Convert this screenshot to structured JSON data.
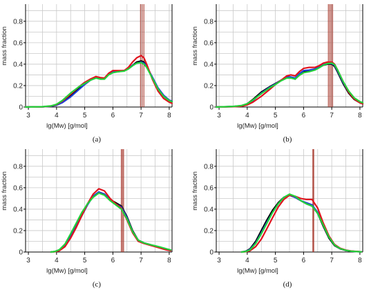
{
  "chart_data": [
    {
      "type": "line",
      "panel_label": "(a)",
      "xlabel": "lg(Mw)  [g/mol]",
      "ylabel": "mass fraction",
      "xlim": [
        2.9,
        8.1
      ],
      "ylim": [
        0,
        0.96
      ],
      "xticks": [
        "3",
        "4",
        "5",
        "6",
        "7",
        "8"
      ],
      "yticks": [
        "0",
        "0.2",
        "0.4",
        "0.6",
        "0.8"
      ],
      "grid": true,
      "colors": {
        "black": "#000000",
        "blue": "#1f3fd6",
        "red": "#e0141e",
        "green": "#22d23a",
        "vline": "#a83a2e"
      },
      "vlines": [
        6.98,
        7.04,
        7.1
      ],
      "series": [
        {
          "color": "black",
          "x": [
            2.9,
            3.5,
            3.8,
            4.0,
            4.2,
            4.5,
            4.8,
            5.0,
            5.2,
            5.4,
            5.55,
            5.7,
            5.85,
            6.0,
            6.2,
            6.4,
            6.55,
            6.7,
            6.85,
            7.0,
            7.1,
            7.2,
            7.4,
            7.6,
            7.8,
            8.0,
            8.1
          ],
          "y": [
            0,
            0.002,
            0.008,
            0.02,
            0.05,
            0.11,
            0.18,
            0.22,
            0.26,
            0.28,
            0.27,
            0.27,
            0.31,
            0.33,
            0.33,
            0.34,
            0.36,
            0.39,
            0.42,
            0.43,
            0.42,
            0.38,
            0.27,
            0.17,
            0.1,
            0.06,
            0.05
          ]
        },
        {
          "color": "blue",
          "x": [
            2.9,
            3.5,
            3.8,
            4.0,
            4.2,
            4.5,
            4.8,
            5.0,
            5.2,
            5.4,
            5.55,
            5.7,
            5.85,
            6.0,
            6.2,
            6.4,
            6.55,
            6.7,
            6.85,
            7.0,
            7.1,
            7.2,
            7.4,
            7.6,
            7.8,
            8.0,
            8.1
          ],
          "y": [
            0,
            0.002,
            0.007,
            0.017,
            0.04,
            0.095,
            0.165,
            0.21,
            0.25,
            0.28,
            0.27,
            0.265,
            0.305,
            0.33,
            0.335,
            0.34,
            0.36,
            0.39,
            0.41,
            0.42,
            0.41,
            0.38,
            0.28,
            0.18,
            0.11,
            0.065,
            0.055
          ]
        },
        {
          "color": "red",
          "x": [
            2.9,
            3.5,
            3.8,
            4.0,
            4.2,
            4.5,
            4.8,
            5.0,
            5.2,
            5.4,
            5.55,
            5.7,
            5.85,
            6.0,
            6.2,
            6.4,
            6.55,
            6.7,
            6.85,
            7.0,
            7.1,
            7.2,
            7.4,
            7.6,
            7.8,
            8.0,
            8.1
          ],
          "y": [
            0,
            0.002,
            0.009,
            0.022,
            0.055,
            0.12,
            0.19,
            0.23,
            0.26,
            0.285,
            0.275,
            0.27,
            0.315,
            0.34,
            0.34,
            0.34,
            0.37,
            0.42,
            0.46,
            0.48,
            0.46,
            0.4,
            0.26,
            0.15,
            0.08,
            0.045,
            0.035
          ]
        },
        {
          "color": "green",
          "x": [
            2.9,
            3.5,
            3.8,
            4.0,
            4.2,
            4.5,
            4.8,
            5.0,
            5.2,
            5.4,
            5.55,
            5.7,
            5.85,
            6.0,
            6.2,
            6.4,
            6.55,
            6.7,
            6.85,
            7.0,
            7.1,
            7.2,
            7.4,
            7.6,
            7.8,
            8.0,
            8.1
          ],
          "y": [
            0,
            0.003,
            0.01,
            0.025,
            0.06,
            0.13,
            0.19,
            0.22,
            0.25,
            0.27,
            0.26,
            0.26,
            0.3,
            0.32,
            0.33,
            0.335,
            0.355,
            0.385,
            0.41,
            0.415,
            0.4,
            0.37,
            0.27,
            0.17,
            0.1,
            0.06,
            0.05
          ]
        }
      ]
    },
    {
      "type": "line",
      "panel_label": "(b)",
      "xlabel": "lg(Mw)  [g/mol]",
      "ylabel": "mass fraction",
      "xlim": [
        2.9,
        8.1
      ],
      "ylim": [
        0,
        0.96
      ],
      "xticks": [
        "3",
        "4",
        "5",
        "6",
        "7",
        "8"
      ],
      "yticks": [
        "0",
        "0.2",
        "0.4",
        "0.6",
        "0.8"
      ],
      "grid": true,
      "colors": {
        "black": "#000000",
        "blue": "#1f3fd6",
        "red": "#e0141e",
        "green": "#22d23a",
        "vline": "#a83a2e"
      },
      "vlines": [
        6.88,
        6.93,
        6.98,
        7.03
      ],
      "series": [
        {
          "color": "black",
          "x": [
            2.9,
            3.5,
            3.8,
            4.0,
            4.2,
            4.5,
            4.8,
            5.0,
            5.2,
            5.4,
            5.55,
            5.7,
            5.85,
            6.0,
            6.2,
            6.4,
            6.55,
            6.7,
            6.85,
            7.0,
            7.1,
            7.2,
            7.4,
            7.6,
            7.8,
            8.0,
            8.1
          ],
          "y": [
            0,
            0.005,
            0.012,
            0.03,
            0.07,
            0.14,
            0.19,
            0.22,
            0.25,
            0.28,
            0.28,
            0.26,
            0.3,
            0.33,
            0.34,
            0.35,
            0.37,
            0.39,
            0.4,
            0.4,
            0.38,
            0.33,
            0.22,
            0.13,
            0.07,
            0.04,
            0.03
          ]
        },
        {
          "color": "blue",
          "x": [
            2.9,
            3.5,
            3.8,
            4.0,
            4.2,
            4.5,
            4.8,
            5.0,
            5.2,
            5.4,
            5.55,
            5.7,
            5.85,
            6.0,
            6.2,
            6.4,
            6.55,
            6.7,
            6.85,
            7.0,
            7.1,
            7.2,
            7.4,
            7.6,
            7.8,
            8.0,
            8.1
          ],
          "y": [
            0,
            0.004,
            0.01,
            0.025,
            0.06,
            0.13,
            0.185,
            0.215,
            0.25,
            0.28,
            0.28,
            0.27,
            0.31,
            0.34,
            0.345,
            0.355,
            0.375,
            0.395,
            0.405,
            0.405,
            0.39,
            0.34,
            0.23,
            0.14,
            0.08,
            0.045,
            0.035
          ]
        },
        {
          "color": "red",
          "x": [
            2.9,
            3.5,
            3.8,
            4.0,
            4.2,
            4.5,
            4.8,
            5.0,
            5.2,
            5.4,
            5.55,
            5.7,
            5.85,
            6.0,
            6.2,
            6.4,
            6.55,
            6.7,
            6.85,
            7.0,
            7.1,
            7.2,
            7.4,
            7.6,
            7.8,
            8.0,
            8.1
          ],
          "y": [
            0,
            0.003,
            0.008,
            0.02,
            0.045,
            0.1,
            0.165,
            0.21,
            0.25,
            0.29,
            0.3,
            0.29,
            0.33,
            0.36,
            0.37,
            0.37,
            0.385,
            0.41,
            0.42,
            0.42,
            0.4,
            0.35,
            0.24,
            0.14,
            0.075,
            0.04,
            0.03
          ]
        },
        {
          "color": "green",
          "x": [
            2.9,
            3.5,
            3.8,
            4.0,
            4.2,
            4.5,
            4.8,
            5.0,
            5.2,
            5.4,
            5.55,
            5.7,
            5.85,
            6.0,
            6.2,
            6.4,
            6.55,
            6.7,
            6.85,
            7.0,
            7.1,
            7.2,
            7.4,
            7.6,
            7.8,
            8.0,
            8.1
          ],
          "y": [
            0,
            0.006,
            0.014,
            0.03,
            0.065,
            0.125,
            0.18,
            0.21,
            0.245,
            0.27,
            0.27,
            0.26,
            0.295,
            0.32,
            0.33,
            0.345,
            0.365,
            0.39,
            0.405,
            0.41,
            0.395,
            0.35,
            0.24,
            0.15,
            0.085,
            0.05,
            0.04
          ]
        }
      ]
    },
    {
      "type": "line",
      "panel_label": "(c)",
      "xlabel": "lg(Mw)  [g/mol]",
      "ylabel": "mass fraction",
      "xlim": [
        2.9,
        8.1
      ],
      "ylim": [
        0,
        0.96
      ],
      "xticks": [
        "3",
        "4",
        "5",
        "6",
        "7",
        "8"
      ],
      "yticks": [
        "0",
        "0.2",
        "0.4",
        "0.6",
        "0.8"
      ],
      "grid": true,
      "colors": {
        "black": "#000000",
        "blue": "#1f3fd6",
        "red": "#e0141e",
        "green": "#22d23a",
        "vline": "#a83a2e"
      },
      "vlines": [
        6.3,
        6.34,
        6.38
      ],
      "series": [
        {
          "color": "black",
          "x": [
            3.8,
            3.95,
            4.1,
            4.3,
            4.5,
            4.7,
            4.9,
            5.1,
            5.3,
            5.5,
            5.7,
            5.9,
            6.1,
            6.3,
            6.5,
            6.7,
            6.9,
            7.1,
            7.3,
            7.5,
            7.7,
            7.9,
            8.05
          ],
          "y": [
            0,
            0.005,
            0.02,
            0.07,
            0.16,
            0.26,
            0.36,
            0.45,
            0.52,
            0.56,
            0.54,
            0.49,
            0.46,
            0.43,
            0.33,
            0.2,
            0.11,
            0.085,
            0.07,
            0.055,
            0.04,
            0.025,
            0.015
          ]
        },
        {
          "color": "blue",
          "x": [
            3.8,
            3.95,
            4.1,
            4.3,
            4.5,
            4.7,
            4.9,
            5.1,
            5.3,
            5.5,
            5.7,
            5.9,
            6.1,
            6.3,
            6.5,
            6.7,
            6.9,
            7.1,
            7.3,
            7.5,
            7.7,
            7.9,
            8.05
          ],
          "y": [
            0,
            0.004,
            0.015,
            0.06,
            0.14,
            0.24,
            0.34,
            0.44,
            0.52,
            0.56,
            0.54,
            0.49,
            0.45,
            0.42,
            0.32,
            0.19,
            0.11,
            0.085,
            0.07,
            0.055,
            0.04,
            0.025,
            0.015
          ]
        },
        {
          "color": "red",
          "x": [
            3.8,
            3.95,
            4.1,
            4.3,
            4.5,
            4.7,
            4.9,
            5.1,
            5.3,
            5.5,
            5.7,
            5.9,
            6.1,
            6.3,
            6.5,
            6.7,
            6.9,
            7.1,
            7.3,
            7.5,
            7.7,
            7.9,
            8.05
          ],
          "y": [
            0,
            0.003,
            0.012,
            0.05,
            0.13,
            0.23,
            0.34,
            0.45,
            0.54,
            0.59,
            0.57,
            0.5,
            0.45,
            0.41,
            0.3,
            0.18,
            0.1,
            0.08,
            0.065,
            0.05,
            0.035,
            0.02,
            0.012
          ]
        },
        {
          "color": "green",
          "x": [
            3.8,
            3.95,
            4.1,
            4.3,
            4.5,
            4.7,
            4.9,
            5.1,
            5.3,
            5.5,
            5.7,
            5.9,
            6.1,
            6.3,
            6.5,
            6.7,
            6.9,
            7.1,
            7.3,
            7.5,
            7.7,
            7.9,
            8.05
          ],
          "y": [
            0,
            0.006,
            0.022,
            0.075,
            0.17,
            0.27,
            0.37,
            0.45,
            0.51,
            0.55,
            0.53,
            0.48,
            0.44,
            0.4,
            0.31,
            0.19,
            0.11,
            0.085,
            0.07,
            0.058,
            0.045,
            0.03,
            0.02
          ]
        }
      ]
    },
    {
      "type": "line",
      "panel_label": "(d)",
      "xlabel": "lg(Mw)  [g/mol]",
      "ylabel": "mass fraction",
      "xlim": [
        2.9,
        8.1
      ],
      "ylim": [
        0,
        0.96
      ],
      "xticks": [
        "3",
        "4",
        "5",
        "6",
        "7",
        "8"
      ],
      "yticks": [
        "0",
        "0.2",
        "0.4",
        "0.6",
        "0.8"
      ],
      "grid": true,
      "colors": {
        "black": "#000000",
        "blue": "#1f3fd6",
        "red": "#e0141e",
        "green": "#22d23a",
        "vline": "#a83a2e"
      },
      "vlines": [
        6.33,
        6.36
      ],
      "series": [
        {
          "color": "black",
          "x": [
            3.8,
            3.95,
            4.1,
            4.3,
            4.5,
            4.7,
            4.9,
            5.1,
            5.3,
            5.5,
            5.7,
            5.9,
            6.1,
            6.3,
            6.5,
            6.7,
            6.9,
            7.1,
            7.3,
            7.5,
            7.7,
            7.9,
            8.05
          ],
          "y": [
            0,
            0.008,
            0.03,
            0.1,
            0.2,
            0.3,
            0.39,
            0.46,
            0.51,
            0.53,
            0.51,
            0.48,
            0.45,
            0.43,
            0.36,
            0.24,
            0.13,
            0.06,
            0.03,
            0.015,
            0.008,
            0.004,
            0.002
          ]
        },
        {
          "color": "blue",
          "x": [
            3.8,
            3.95,
            4.1,
            4.3,
            4.5,
            4.7,
            4.9,
            5.1,
            5.3,
            5.5,
            5.7,
            5.9,
            6.1,
            6.3,
            6.5,
            6.7,
            6.9,
            7.1,
            7.3,
            7.5,
            7.7,
            7.9,
            8.05
          ],
          "y": [
            0,
            0.006,
            0.025,
            0.085,
            0.18,
            0.28,
            0.37,
            0.45,
            0.51,
            0.53,
            0.51,
            0.48,
            0.46,
            0.44,
            0.37,
            0.25,
            0.14,
            0.065,
            0.032,
            0.016,
            0.008,
            0.004,
            0.002
          ]
        },
        {
          "color": "red",
          "x": [
            3.8,
            3.95,
            4.1,
            4.3,
            4.5,
            4.7,
            4.9,
            5.1,
            5.3,
            5.5,
            5.7,
            5.9,
            6.1,
            6.3,
            6.5,
            6.7,
            6.9,
            7.1,
            7.3,
            7.5,
            7.7,
            7.9,
            8.05
          ],
          "y": [
            0,
            0.003,
            0.012,
            0.05,
            0.12,
            0.22,
            0.32,
            0.42,
            0.49,
            0.53,
            0.52,
            0.5,
            0.49,
            0.49,
            0.41,
            0.27,
            0.15,
            0.07,
            0.035,
            0.018,
            0.009,
            0.005,
            0.002
          ]
        },
        {
          "color": "green",
          "x": [
            3.8,
            3.95,
            4.1,
            4.3,
            4.5,
            4.7,
            4.9,
            5.1,
            5.3,
            5.5,
            5.7,
            5.9,
            6.1,
            6.3,
            6.5,
            6.7,
            6.9,
            7.1,
            7.3,
            7.5,
            7.7,
            7.9,
            8.05
          ],
          "y": [
            0,
            0.005,
            0.02,
            0.08,
            0.17,
            0.27,
            0.37,
            0.45,
            0.51,
            0.54,
            0.52,
            0.48,
            0.45,
            0.43,
            0.36,
            0.25,
            0.14,
            0.065,
            0.032,
            0.016,
            0.008,
            0.004,
            0.002
          ]
        }
      ]
    }
  ]
}
